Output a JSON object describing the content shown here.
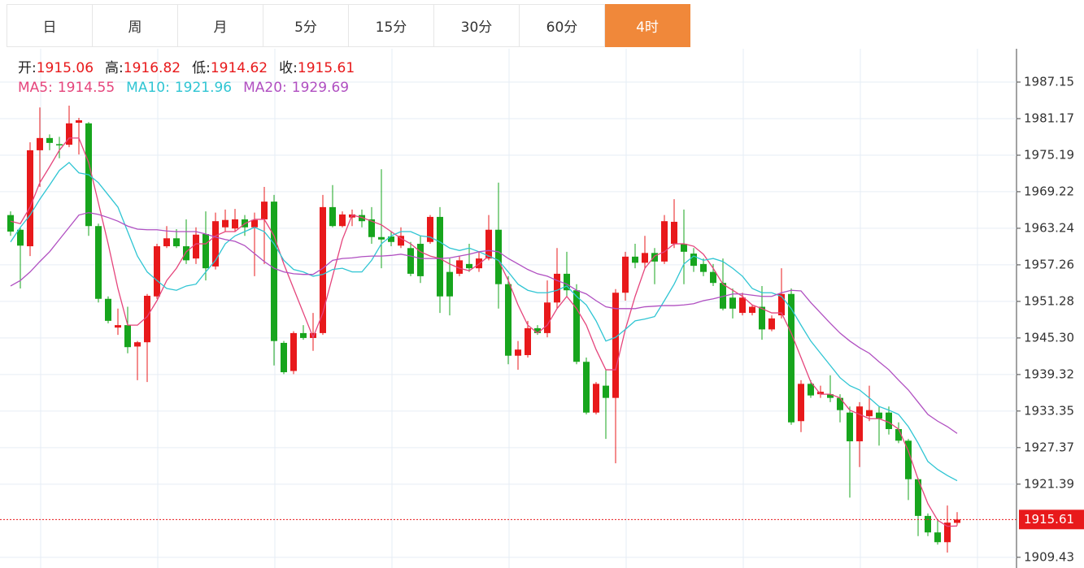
{
  "chart_data": {
    "type": "candlestick",
    "tabs": [
      "日",
      "周",
      "月",
      "5分",
      "15分",
      "30分",
      "60分",
      "4时"
    ],
    "active_tab": "4时",
    "ohlc_labels": [
      "开:",
      "高:",
      "低:",
      "收:"
    ],
    "up_color": "#e8191b",
    "down_color": "#17a51d",
    "ylim": [
      1907.68,
      1992.6
    ],
    "yticks": [
      1987.15,
      1981.17,
      1975.19,
      1969.22,
      1963.24,
      1957.26,
      1951.28,
      {
        "value": 1945.3,
        "label": "1945.30"
      },
      1939.32,
      1933.35,
      1927.37,
      1921.39,
      1909.43
    ],
    "grid": true,
    "candles": {
      "open": [
        1965.4,
        1963.0,
        1960.3,
        1976.0,
        1978.0,
        1977.0,
        1976.9,
        1980.5,
        1980.4,
        1963.6,
        1951.7,
        1947.0,
        1947.4,
        1943.9,
        1944.6,
        1952.1,
        1960.3,
        1961.6,
        1960.3,
        1958.3,
        1962.3,
        1957.0,
        1963.4,
        1963.2,
        1964.7,
        1963.4,
        1964.7,
        1967.6,
        1944.5,
        1939.9,
        1946.1,
        1945.3,
        1946.1,
        1966.7,
        1963.6,
        1965.0,
        1965.4,
        1964.7,
        1961.8,
        1961.9,
        1960.4,
        1960.0,
        1960.7,
        1961.0,
        1965.1,
        1956.1,
        1955.8,
        1957.4,
        1956.7,
        1958.3,
        1963.0,
        1954.1,
        1942.4,
        1942.5,
        1946.9,
        1946.1,
        1951.1,
        1955.8,
        1953.1,
        1941.4,
        1933.1,
        1937.5,
        1935.5,
        1952.7,
        1958.6,
        1957.6,
        1959.2,
        1957.8,
        1960.7,
        1960.7,
        1959.1,
        1957.4,
        1956.1,
        1954.3,
        1951.9,
        1949.4,
        1949.4,
        1950.4,
        1946.7,
        1949.0,
        1952.5,
        1931.7,
        1937.8,
        1936.1,
        1936.1,
        1935.5,
        1933.1,
        1928.4,
        1932.5,
        1933.1,
        1933.1,
        1930.4,
        1928.5,
        1922.2,
        1916.2,
        1913.5,
        1911.9,
        1915.06
      ],
      "high": [
        1966.0,
        1963.4,
        1977.3,
        1983.0,
        1978.6,
        1978.2,
        1983.3,
        1981.3,
        1980.6,
        1964.0,
        1952.1,
        1950.1,
        1950.4,
        1944.8,
        1952.5,
        1960.7,
        1963.6,
        1963.1,
        1964.7,
        1963.4,
        1966.0,
        1965.8,
        1966.3,
        1966.4,
        1965.4,
        1965.8,
        1970.0,
        1968.7,
        1944.8,
        1946.4,
        1947.4,
        1949.4,
        1968.7,
        1970.3,
        1966.0,
        1966.3,
        1966.3,
        1966.7,
        1972.9,
        1962.7,
        1963.4,
        1961.0,
        1962.0,
        1965.4,
        1966.7,
        1958.3,
        1958.7,
        1960.7,
        1959.4,
        1965.4,
        1970.7,
        1955.4,
        1944.8,
        1948.1,
        1947.4,
        1954.7,
        1960.0,
        1959.4,
        1954.1,
        1942.1,
        1938.1,
        1940.1,
        1953.3,
        1959.4,
        1960.7,
        1962.0,
        1960.0,
        1965.4,
        1968.0,
        1966.3,
        1960.0,
        1958.3,
        1957.4,
        1958.3,
        1953.4,
        1952.7,
        1950.7,
        1953.8,
        1949.0,
        1956.7,
        1953.4,
        1938.4,
        1938.4,
        1937.5,
        1939.2,
        1936.1,
        1934.1,
        1934.8,
        1937.5,
        1934.1,
        1934.1,
        1931.5,
        1928.8,
        1922.4,
        1916.6,
        1915.5,
        1917.9,
        1916.82
      ],
      "low": [
        1962.0,
        1953.4,
        1958.7,
        1970.0,
        1976.0,
        1974.7,
        1976.5,
        1975.3,
        1962.0,
        1951.1,
        1947.7,
        1945.8,
        1942.8,
        1938.4,
        1938.1,
        1951.7,
        1960.0,
        1960.0,
        1957.4,
        1957.4,
        1954.7,
        1956.5,
        1962.7,
        1962.7,
        1962.0,
        1955.4,
        1957.4,
        1940.8,
        1939.4,
        1939.4,
        1945.0,
        1943.2,
        1945.8,
        1963.4,
        1963.4,
        1963.6,
        1963.4,
        1960.7,
        1956.7,
        1960.3,
        1960.0,
        1955.4,
        1954.3,
        1960.7,
        1949.4,
        1949.0,
        1955.4,
        1956.1,
        1956.1,
        1958.0,
        1950.1,
        1941.0,
        1940.1,
        1942.1,
        1945.8,
        1945.4,
        1950.1,
        1952.1,
        1941.0,
        1932.8,
        1932.8,
        1928.8,
        1924.8,
        1951.4,
        1956.7,
        1956.7,
        1954.1,
        1957.4,
        1960.0,
        1954.1,
        1956.1,
        1955.4,
        1953.8,
        1949.8,
        1948.5,
        1949.0,
        1949.0,
        1945.0,
        1946.4,
        1948.5,
        1931.1,
        1929.9,
        1935.5,
        1935.5,
        1934.8,
        1931.5,
        1919.2,
        1924.2,
        1931.7,
        1927.7,
        1929.5,
        1928.1,
        1918.8,
        1912.9,
        1912.9,
        1911.5,
        1910.2,
        1914.62
      ],
      "close": [
        1962.7,
        1960.4,
        1976.0,
        1978.0,
        1977.2,
        1976.8,
        1980.4,
        1980.9,
        1963.6,
        1951.7,
        1948.1,
        1947.4,
        1943.8,
        1944.6,
        1952.2,
        1960.3,
        1961.6,
        1960.3,
        1958.0,
        1962.2,
        1956.7,
        1964.4,
        1964.6,
        1964.7,
        1963.4,
        1964.6,
        1967.6,
        1944.8,
        1939.7,
        1946.1,
        1945.3,
        1946.1,
        1966.7,
        1963.6,
        1965.5,
        1965.5,
        1964.4,
        1961.8,
        1961.4,
        1961.0,
        1962.0,
        1955.8,
        1955.4,
        1965.1,
        1952.1,
        1952.1,
        1958.0,
        1956.7,
        1958.3,
        1963.0,
        1954.1,
        1942.4,
        1943.4,
        1946.9,
        1946.1,
        1951.1,
        1955.8,
        1953.1,
        1941.4,
        1933.1,
        1937.8,
        1935.5,
        1952.7,
        1958.6,
        1957.6,
        1959.2,
        1957.8,
        1964.4,
        1964.3,
        1959.4,
        1957.1,
        1956.1,
        1954.3,
        1950.1,
        1950.1,
        1951.9,
        1950.4,
        1946.7,
        1948.5,
        1952.5,
        1931.5,
        1937.8,
        1935.9,
        1936.5,
        1935.5,
        1933.5,
        1928.4,
        1934.1,
        1933.5,
        1932.1,
        1930.4,
        1928.5,
        1922.2,
        1916.2,
        1913.5,
        1911.9,
        1915.1,
        1915.61
      ]
    },
    "series": [
      {
        "name": "MA5:",
        "color": "#e5457c",
        "values": [
          1964.4,
          1964.0,
          1966.7,
          1970.7,
          1973.3,
          1976.0,
          1978.0,
          1978.0,
          1974.0,
          1967.4,
          1960.7,
          1953.4,
          1947.4,
          1947.4,
          1948.8,
          1951.4,
          1954.7,
          1956.7,
          1959.4,
          1960.7,
          1960.7,
          1962.0,
          1962.7,
          1962.7,
          1964.0,
          1964.7,
          1964.7,
          1962.0,
          1957.4,
          1953.4,
          1949.4,
          1945.4,
          1949.4,
          1955.4,
          1961.4,
          1965.4,
          1965.0,
          1964.4,
          1963.8,
          1962.7,
          1961.6,
          1960.7,
          1959.4,
          1958.7,
          1958.3,
          1957.4,
          1956.7,
          1956.3,
          1957.4,
          1958.7,
          1958.0,
          1954.7,
          1950.7,
          1947.4,
          1946.1,
          1947.4,
          1950.1,
          1952.1,
          1950.1,
          1947.4,
          1943.4,
          1940.1,
          1940.1,
          1946.7,
          1952.1,
          1956.7,
          1958.7,
          1959.4,
          1960.7,
          1960.7,
          1960.3,
          1959.0,
          1956.7,
          1954.1,
          1953.1,
          1952.1,
          1950.7,
          1950.1,
          1949.4,
          1949.4,
          1946.1,
          1942.1,
          1938.1,
          1936.1,
          1936.1,
          1935.5,
          1933.5,
          1932.8,
          1932.1,
          1932.1,
          1931.5,
          1930.4,
          1926.8,
          1922.2,
          1918.2,
          1915.5,
          1914.5,
          1914.55
        ]
      },
      {
        "name": "MA10:",
        "color": "#2fc5d3",
        "values": [
          1961.0,
          1963.4,
          1965.4,
          1968.0,
          1970.3,
          1972.7,
          1974.0,
          1972.3,
          1972.0,
          1970.7,
          1968.7,
          1966.7,
          1962.7,
          1958.7,
          1956.1,
          1954.7,
          1953.4,
          1953.1,
          1953.8,
          1954.1,
          1956.1,
          1958.0,
          1960.7,
          1962.0,
          1962.7,
          1963.4,
          1962.7,
          1960.7,
          1958.0,
          1956.5,
          1956.1,
          1955.4,
          1955.7,
          1956.5,
          1956.7,
          1956.1,
          1956.1,
          1958.0,
          1960.7,
          1962.0,
          1962.7,
          1962.7,
          1962.0,
          1961.8,
          1961.0,
          1960.0,
          1959.6,
          1960.0,
          1959.4,
          1958.7,
          1958.0,
          1956.1,
          1954.1,
          1953.1,
          1952.7,
          1952.7,
          1953.1,
          1953.8,
          1952.1,
          1950.7,
          1948.1,
          1944.8,
          1945.4,
          1946.7,
          1948.1,
          1948.4,
          1948.8,
          1951.4,
          1954.1,
          1957.4,
          1958.7,
          1958.0,
          1958.3,
          1957.8,
          1956.7,
          1955.4,
          1953.4,
          1952.7,
          1952.7,
          1952.1,
          1950.1,
          1947.4,
          1944.8,
          1942.8,
          1940.8,
          1938.8,
          1937.5,
          1936.8,
          1935.5,
          1934.1,
          1933.5,
          1932.8,
          1930.8,
          1928.1,
          1925.1,
          1923.8,
          1922.8,
          1921.96
        ]
      },
      {
        "name": "MA20:",
        "color": "#b04fc1",
        "values": [
          1953.8,
          1954.7,
          1956.1,
          1957.8,
          1959.4,
          1961.4,
          1963.4,
          1965.4,
          1965.8,
          1965.5,
          1965.0,
          1964.4,
          1963.6,
          1963.1,
          1963.0,
          1963.0,
          1962.8,
          1962.7,
          1962.7,
          1962.7,
          1962.3,
          1961.8,
          1961.4,
          1961.1,
          1960.4,
          1959.1,
          1957.8,
          1956.7,
          1956.1,
          1955.8,
          1955.7,
          1955.7,
          1956.7,
          1958.0,
          1958.3,
          1958.4,
          1958.6,
          1958.7,
          1958.7,
          1958.8,
          1959.0,
          1958.7,
          1958.3,
          1958.3,
          1958.3,
          1958.4,
          1958.7,
          1959.0,
          1959.4,
          1959.6,
          1959.4,
          1958.3,
          1957.4,
          1956.5,
          1955.8,
          1955.4,
          1954.7,
          1954.1,
          1953.1,
          1952.5,
          1951.4,
          1950.4,
          1950.1,
          1950.1,
          1950.1,
          1950.4,
          1950.5,
          1950.6,
          1950.6,
          1950.7,
          1950.9,
          1951.4,
          1951.7,
          1952.1,
          1952.5,
          1952.5,
          1952.3,
          1952.1,
          1952.1,
          1952.7,
          1953.1,
          1953.0,
          1951.1,
          1949.4,
          1947.7,
          1946.1,
          1944.8,
          1943.7,
          1942.8,
          1941.4,
          1940.1,
          1938.4,
          1936.8,
          1934.8,
          1932.8,
          1931.7,
          1930.8,
          1929.69
        ]
      }
    ]
  }
}
